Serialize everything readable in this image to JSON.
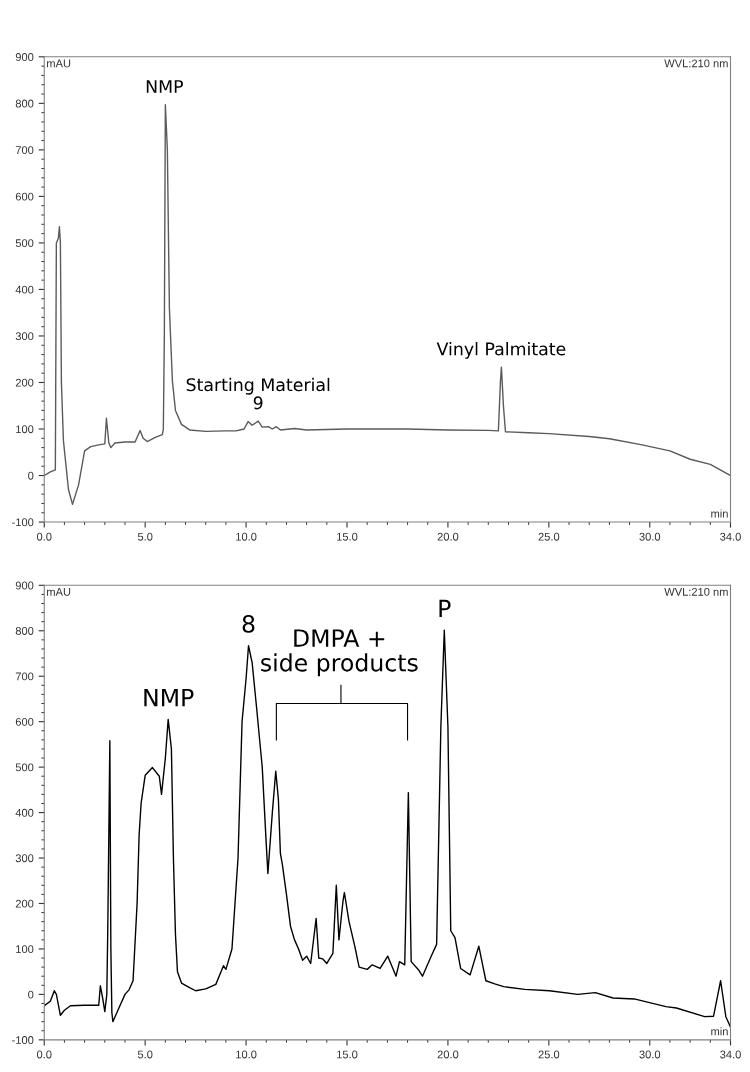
{
  "chart_data": [
    {
      "type": "line",
      "xlabel": "min",
      "ylabel": "mAU",
      "grid": false,
      "legend": false,
      "marker": "none",
      "line_style": "solid",
      "xlim": [
        0,
        34
      ],
      "ylim": [
        -100,
        900
      ],
      "xticks": [
        {
          "value": 0,
          "label": "0.0"
        },
        {
          "value": 5,
          "label": "5.0"
        },
        {
          "value": 10,
          "label": "10.0"
        },
        {
          "value": 15,
          "label": "15.0"
        },
        {
          "value": 20,
          "label": "20.0"
        },
        {
          "value": 25,
          "label": "25.0"
        },
        {
          "value": 30,
          "label": "30.0"
        },
        {
          "value": 34,
          "label": "34.0"
        }
      ],
      "yticks": [
        -100,
        0,
        100,
        200,
        300,
        400,
        500,
        600,
        700,
        800,
        900
      ],
      "annotations": [
        "WVL:210 nm",
        {
          "text": "NMP",
          "x": 5.95,
          "y": 797
        },
        {
          "text": "Starting Material\n9",
          "x": 10.6,
          "y": 117
        },
        {
          "text": "Vinyl Palmitate",
          "x": 22.65,
          "y": 233
        }
      ],
      "series": [
        {
          "color": "#5a5a5a",
          "x": [
            0,
            0.3,
            0.55,
            0.6,
            0.7,
            0.75,
            0.8,
            0.85,
            0.95,
            1.2,
            1.4,
            1.7,
            2.0,
            2.3,
            2.7,
            3.0,
            3.08,
            3.2,
            3.3,
            3.5,
            4.0,
            4.5,
            4.75,
            4.9,
            5.1,
            5.5,
            5.85,
            5.9,
            5.95,
            6.0,
            6.1,
            6.2,
            6.35,
            6.5,
            6.8,
            7.2,
            8.0,
            9.0,
            9.5,
            9.9,
            10.1,
            10.3,
            10.6,
            10.8,
            11.1,
            11.3,
            11.5,
            11.7,
            12.4,
            13.0,
            15.0,
            18.0,
            20.0,
            22.0,
            22.5,
            22.6,
            22.65,
            22.75,
            22.85,
            24.0,
            25.0,
            27.0,
            28.0,
            29.5,
            31.0,
            32.0,
            33.0,
            34.0
          ],
          "values": [
            0,
            8,
            12,
            500,
            510,
            535,
            500,
            200,
            75,
            -30,
            -62,
            -20,
            53,
            62,
            66,
            68,
            123,
            70,
            60,
            70,
            72,
            72,
            97,
            80,
            73,
            82,
            88,
            100,
            300,
            797,
            700,
            360,
            203,
            140,
            110,
            98,
            95,
            96,
            96,
            100,
            116,
            108,
            117,
            104,
            105,
            100,
            105,
            98,
            101,
            98,
            100,
            100,
            98,
            97,
            96,
            200,
            233,
            150,
            94,
            92,
            90,
            84,
            79,
            67,
            53,
            35,
            24,
            0
          ]
        }
      ]
    },
    {
      "type": "line",
      "xlabel": "min",
      "ylabel": "mAU",
      "grid": false,
      "legend": false,
      "marker": "none",
      "line_style": "solid",
      "xlim": [
        0,
        34
      ],
      "ylim": [
        -100,
        900
      ],
      "xticks": [
        {
          "value": 0,
          "label": "0.0"
        },
        {
          "value": 5,
          "label": "5.0"
        },
        {
          "value": 10,
          "label": "10.0"
        },
        {
          "value": 15,
          "label": "15.0"
        },
        {
          "value": 20,
          "label": "20.0"
        },
        {
          "value": 25,
          "label": "25.0"
        },
        {
          "value": 30,
          "label": "30.0"
        },
        {
          "value": 34,
          "label": "34.0"
        }
      ],
      "yticks": [
        -100,
        0,
        100,
        200,
        300,
        400,
        500,
        600,
        700,
        800,
        900
      ],
      "annotations": [
        "WVL:210 nm",
        {
          "text": "NMP",
          "x": 6.14,
          "y": 605
        },
        {
          "text": "8",
          "x": 10.12,
          "y": 767
        },
        "DMPA +\nside products",
        {
          "text": "P",
          "x": 19.82,
          "y": 801
        }
      ],
      "series": [
        {
          "color": "#000000",
          "x": [
            0,
            0.3,
            0.5,
            0.6,
            0.8,
            1.0,
            1.3,
            2.0,
            2.7,
            2.78,
            2.9,
            3.0,
            3.1,
            3.15,
            3.25,
            3.3,
            3.35,
            3.4,
            3.7,
            4.0,
            4.2,
            4.4,
            4.6,
            4.7,
            4.8,
            5.0,
            5.36,
            5.7,
            5.81,
            6.0,
            6.14,
            6.3,
            6.4,
            6.5,
            6.6,
            6.8,
            7.2,
            7.5,
            8.0,
            8.5,
            8.88,
            9.0,
            9.3,
            9.6,
            9.8,
            10.0,
            10.12,
            10.3,
            10.5,
            10.8,
            11.0,
            11.08,
            11.3,
            11.47,
            11.6,
            11.7,
            11.8,
            12.0,
            12.2,
            12.4,
            12.6,
            12.8,
            13.0,
            13.2,
            13.47,
            13.6,
            13.8,
            14.0,
            14.3,
            14.47,
            14.6,
            14.8,
            14.87,
            15.1,
            15.39,
            15.6,
            16.0,
            16.25,
            16.64,
            17.02,
            17.43,
            17.6,
            17.86,
            18.04,
            18.18,
            18.56,
            18.74,
            19.17,
            19.44,
            19.65,
            19.82,
            20.0,
            20.14,
            20.35,
            20.63,
            21.1,
            21.53,
            21.88,
            22.32,
            22.76,
            23.81,
            25.03,
            26.43,
            27.3,
            28.18,
            29.23,
            30.8,
            31.32,
            32.72,
            33.16,
            33.51,
            33.77,
            34.0
          ],
          "values": [
            -25,
            -15,
            8,
            0,
            -46,
            -35,
            -25,
            -24,
            -24,
            19,
            -10,
            -38,
            0,
            152,
            558,
            100,
            -40,
            -60,
            -30,
            0,
            10,
            30,
            200,
            350,
            421,
            482,
            499,
            480,
            440,
            520,
            605,
            540,
            300,
            133,
            50,
            25,
            15,
            8,
            12,
            22,
            63,
            55,
            100,
            300,
            600,
            695,
            767,
            730,
            640,
            500,
            330,
            266,
            400,
            491,
            430,
            310,
            285,
            220,
            150,
            120,
            100,
            75,
            84,
            68,
            167,
            80,
            78,
            68,
            90,
            240,
            120,
            205,
            224,
            160,
            105,
            60,
            55,
            65,
            57,
            84,
            40,
            72,
            65,
            444,
            72,
            53,
            40,
            84,
            110,
            589,
            801,
            589,
            140,
            125,
            57,
            43,
            106,
            30,
            23,
            17,
            11,
            8,
            0,
            4,
            -8,
            -10,
            -27,
            -30,
            -49,
            -48,
            30,
            -49,
            -72
          ]
        }
      ]
    }
  ]
}
